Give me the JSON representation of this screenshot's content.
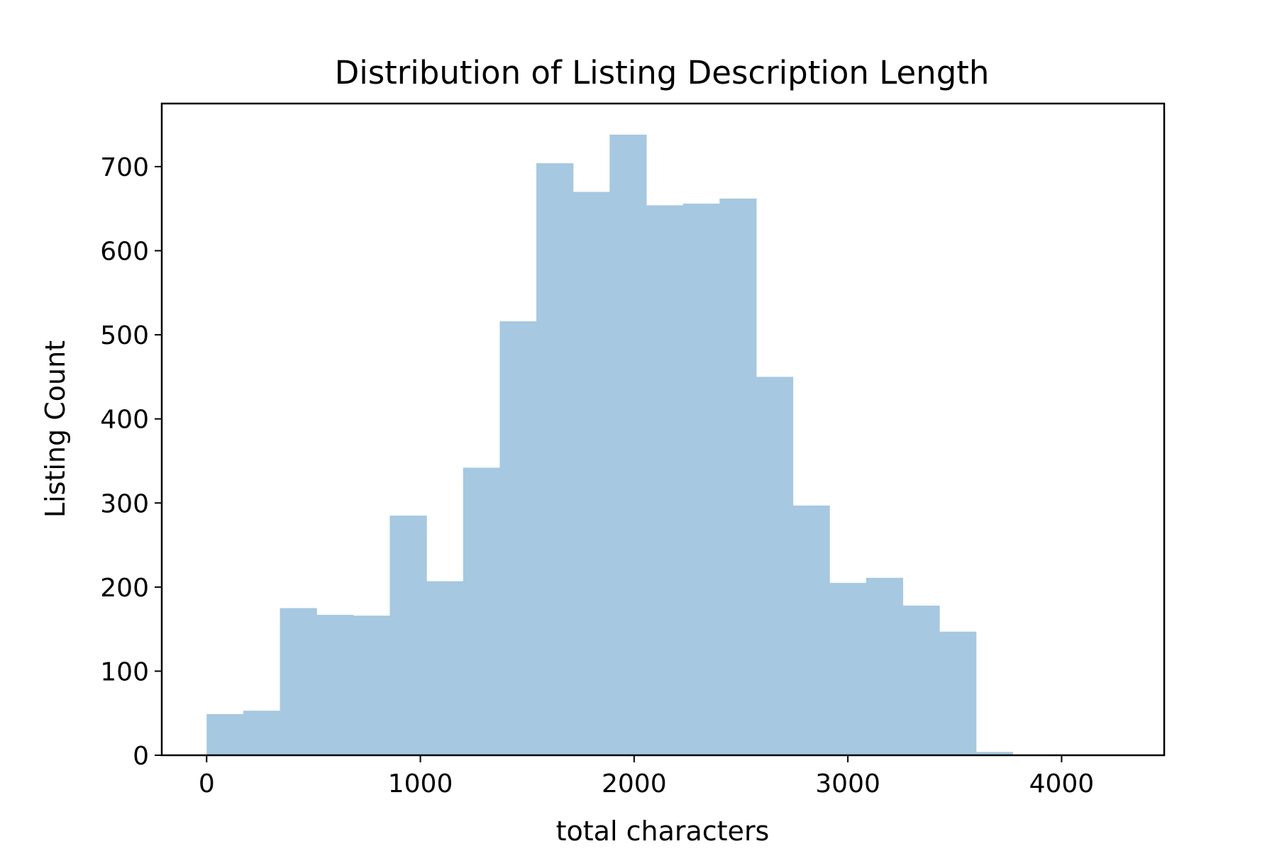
{
  "chart_data": {
    "type": "bar",
    "title": "Distribution of Listing Description Length",
    "xlabel": "total characters",
    "ylabel": "Listing Count",
    "xlim": [
      -210,
      4480
    ],
    "ylim": [
      0,
      775
    ],
    "grid": false,
    "legend": "none",
    "bar_color": "#a6c8e0",
    "bins": [
      {
        "start": 0,
        "end": 171.4,
        "count": 49
      },
      {
        "start": 171.4,
        "end": 342.8,
        "count": 53
      },
      {
        "start": 342.8,
        "end": 514.2,
        "count": 175
      },
      {
        "start": 514.2,
        "end": 685.6,
        "count": 167
      },
      {
        "start": 685.6,
        "end": 857,
        "count": 166
      },
      {
        "start": 857,
        "end": 1028.4,
        "count": 285
      },
      {
        "start": 1028.4,
        "end": 1199.8,
        "count": 207
      },
      {
        "start": 1199.8,
        "end": 1371.2,
        "count": 342
      },
      {
        "start": 1371.2,
        "end": 1542.6,
        "count": 516
      },
      {
        "start": 1542.6,
        "end": 1714,
        "count": 704
      },
      {
        "start": 1714,
        "end": 1885.4,
        "count": 670
      },
      {
        "start": 1885.4,
        "end": 2056.8,
        "count": 738
      },
      {
        "start": 2056.8,
        "end": 2228.2,
        "count": 654
      },
      {
        "start": 2228.2,
        "end": 2399.6,
        "count": 656
      },
      {
        "start": 2399.6,
        "end": 2571,
        "count": 662
      },
      {
        "start": 2571,
        "end": 2742.4,
        "count": 450
      },
      {
        "start": 2742.4,
        "end": 2913.8,
        "count": 297
      },
      {
        "start": 2913.8,
        "end": 3085.2,
        "count": 205
      },
      {
        "start": 3085.2,
        "end": 3256.6,
        "count": 211
      },
      {
        "start": 3256.6,
        "end": 3428,
        "count": 178
      },
      {
        "start": 3428,
        "end": 3599.4,
        "count": 147
      },
      {
        "start": 3599.4,
        "end": 3770.8,
        "count": 4
      },
      {
        "start": 3770.8,
        "end": 3942.2,
        "count": 0
      },
      {
        "start": 3942.2,
        "end": 4113.6,
        "count": 1
      },
      {
        "start": 4113.6,
        "end": 4285,
        "count": 1
      }
    ],
    "x_ticks": [
      {
        "value": 0,
        "label": "0"
      },
      {
        "value": 1000,
        "label": "1000"
      },
      {
        "value": 2000,
        "label": "2000"
      },
      {
        "value": 3000,
        "label": "3000"
      },
      {
        "value": 4000,
        "label": "4000"
      }
    ],
    "y_ticks": [
      {
        "value": 0,
        "label": "0"
      },
      {
        "value": 100,
        "label": "100"
      },
      {
        "value": 200,
        "label": "200"
      },
      {
        "value": 300,
        "label": "300"
      },
      {
        "value": 400,
        "label": "400"
      },
      {
        "value": 500,
        "label": "500"
      },
      {
        "value": 600,
        "label": "600"
      },
      {
        "value": 700,
        "label": "700"
      }
    ]
  }
}
